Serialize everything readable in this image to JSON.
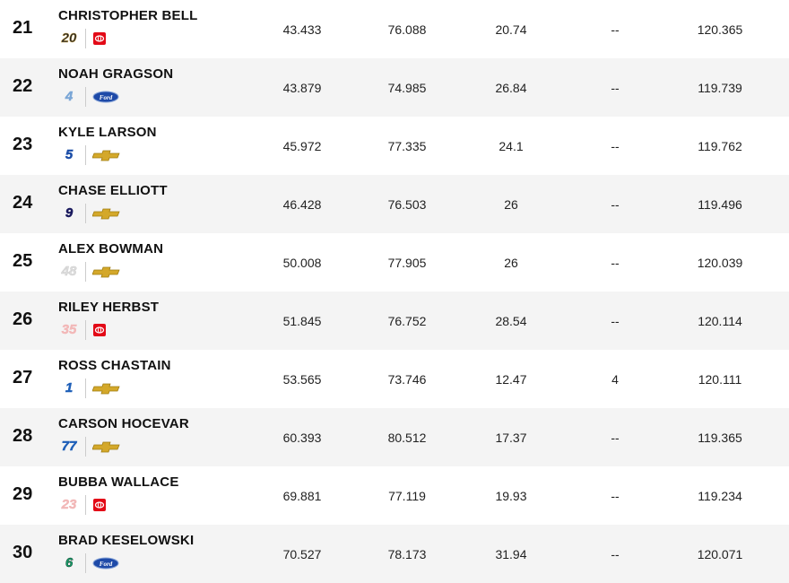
{
  "table": {
    "rows": [
      {
        "position": "21",
        "driver": "CHRISTOPHER BELL",
        "car": "20",
        "cells": [
          "43.433",
          "76.088",
          "20.74",
          "--",
          "120.365"
        ]
      },
      {
        "position": "22",
        "driver": "NOAH GRAGSON",
        "car": "4",
        "cells": [
          "43.879",
          "74.985",
          "26.84",
          "--",
          "119.739"
        ]
      },
      {
        "position": "23",
        "driver": "KYLE LARSON",
        "car": "5",
        "cells": [
          "45.972",
          "77.335",
          "24.1",
          "--",
          "119.762"
        ]
      },
      {
        "position": "24",
        "driver": "CHASE ELLIOTT",
        "car": "9",
        "cells": [
          "46.428",
          "76.503",
          "26",
          "--",
          "119.496"
        ]
      },
      {
        "position": "25",
        "driver": "ALEX BOWMAN",
        "car": "48",
        "cells": [
          "50.008",
          "77.905",
          "26",
          "--",
          "120.039"
        ]
      },
      {
        "position": "26",
        "driver": "RILEY HERBST",
        "car": "35",
        "cells": [
          "51.845",
          "76.752",
          "28.54",
          "--",
          "120.114"
        ]
      },
      {
        "position": "27",
        "driver": "ROSS CHASTAIN",
        "car": "1",
        "cells": [
          "53.565",
          "73.746",
          "12.47",
          "4",
          "120.111"
        ]
      },
      {
        "position": "28",
        "driver": "CARSON HOCEVAR",
        "car": "77",
        "cells": [
          "60.393",
          "80.512",
          "17.37",
          "--",
          "119.365"
        ]
      },
      {
        "position": "29",
        "driver": "BUBBA WALLACE",
        "car": "23",
        "cells": [
          "69.881",
          "77.119",
          "19.93",
          "--",
          "119.234"
        ]
      },
      {
        "position": "30",
        "driver": "BRAD KESELOWSKI",
        "car": "6",
        "cells": [
          "70.527",
          "78.173",
          "31.94",
          "--",
          "120.071"
        ]
      }
    ]
  }
}
